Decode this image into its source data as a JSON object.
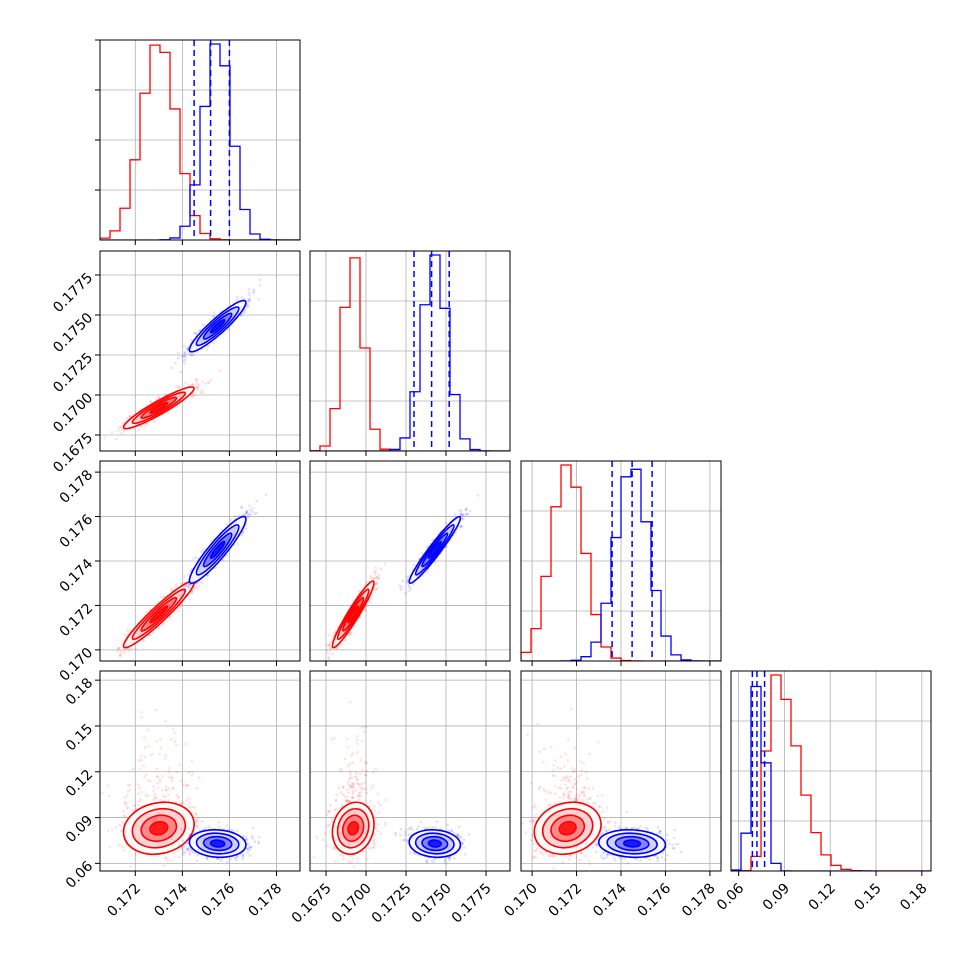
{
  "chart_data": {
    "type": "corner",
    "grid": true,
    "parameters": 4,
    "series": [
      {
        "color": "#ff0000",
        "centers": [
          0.173,
          0.1692,
          0.1716,
          0.083
        ],
        "sigmas": [
          0.00075,
          0.00065,
          0.00075,
          0.0085
        ]
      },
      {
        "color": "#0000ff",
        "centers": [
          0.1755,
          0.1743,
          0.1745,
          0.073
        ],
        "sigmas": [
          0.0006,
          0.0008,
          0.00075,
          0.0045
        ]
      }
    ],
    "correlations": {
      "1-0": [
        0.93,
        0.92
      ],
      "2-0": [
        0.95,
        0.92
      ],
      "2-1": [
        0.95,
        0.96
      ],
      "3-0": [
        0.15,
        -0.1
      ],
      "3-1": [
        0.15,
        -0.1
      ],
      "3-2": [
        0.15,
        -0.1
      ]
    },
    "quantiles": [
      [
        0.1745,
        0.1752,
        0.176
      ],
      [
        0.173,
        0.1741,
        0.1752
      ],
      [
        0.1736,
        0.1745,
        0.1754
      ],
      [
        0.069,
        0.072,
        0.077
      ]
    ],
    "axes": [
      {
        "range": [
          0.1705,
          0.179
        ],
        "ticks": [
          0.172,
          0.174,
          0.176,
          0.178
        ],
        "tick_labels": [
          "0.172",
          "0.174",
          "0.176",
          "0.178"
        ]
      },
      {
        "range": [
          0.1665,
          0.179
        ],
        "ticks": [
          0.1675,
          0.17,
          0.1725,
          0.175,
          0.1775
        ],
        "tick_labels": [
          "0.1675",
          "0.1700",
          "0.1725",
          "0.1750",
          "0.1775"
        ]
      },
      {
        "range": [
          0.1695,
          0.1785
        ],
        "ticks": [
          0.17,
          0.172,
          0.174,
          0.176,
          0.178
        ],
        "tick_labels": [
          "0.170",
          "0.172",
          "0.174",
          "0.176",
          "0.178"
        ]
      },
      {
        "range": [
          0.055,
          0.186
        ],
        "ticks": [
          0.06,
          0.09,
          0.12,
          0.15,
          0.18
        ],
        "tick_labels": [
          "0.06",
          "0.09",
          "0.12",
          "0.15",
          "0.18"
        ]
      }
    ]
  }
}
